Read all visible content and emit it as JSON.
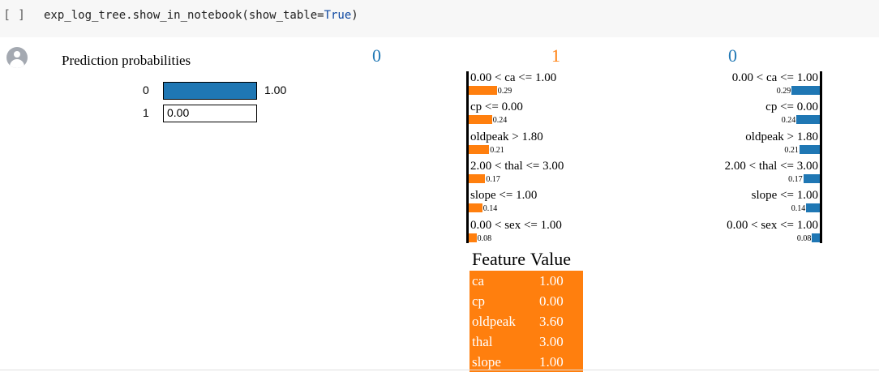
{
  "cell": {
    "run_indicator": "[ ]",
    "code_prefix": "exp_log_tree.show_in_notebook(show_table=",
    "code_keyword": "True",
    "code_suffix": ")"
  },
  "prediction": {
    "title": "Prediction probabilities",
    "rows": [
      {
        "label": "0",
        "value": "1.00",
        "fraction": 1.0
      },
      {
        "label": "1",
        "value": "0.00",
        "fraction": 0.0
      }
    ]
  },
  "class_headers": {
    "left": "0",
    "middle": "1",
    "right": "0"
  },
  "explanation": {
    "left_items": [
      {
        "label": "0.00 < ca <= 1.00",
        "value": "0.29",
        "weight": 0.29
      },
      {
        "label": "cp <= 0.00",
        "value": "0.24",
        "weight": 0.24
      },
      {
        "label": "oldpeak > 1.80",
        "value": "0.21",
        "weight": 0.21
      },
      {
        "label": "2.00 < thal <= 3.00",
        "value": "0.17",
        "weight": 0.17
      },
      {
        "label": "slope <= 1.00",
        "value": "0.14",
        "weight": 0.14
      },
      {
        "label": "0.00 < sex <= 1.00",
        "value": "0.08",
        "weight": 0.08
      }
    ],
    "right_items": [
      {
        "label": "0.00 < ca <= 1.00",
        "value": "0.29",
        "weight": 0.29
      },
      {
        "label": "cp <= 0.00",
        "value": "0.24",
        "weight": 0.24
      },
      {
        "label": "oldpeak > 1.80",
        "value": "0.21",
        "weight": 0.21
      },
      {
        "label": "2.00 < thal <= 3.00",
        "value": "0.17",
        "weight": 0.17
      },
      {
        "label": "slope <= 1.00",
        "value": "0.14",
        "weight": 0.14
      },
      {
        "label": "0.00 < sex <= 1.00",
        "value": "0.08",
        "weight": 0.08
      }
    ]
  },
  "feature_table": {
    "headers": [
      "Feature",
      "Value"
    ],
    "rows": [
      {
        "feature": "ca",
        "value": "1.00"
      },
      {
        "feature": "cp",
        "value": "0.00"
      },
      {
        "feature": "oldpeak",
        "value": "3.60"
      },
      {
        "feature": "thal",
        "value": "3.00"
      },
      {
        "feature": "slope",
        "value": "1.00"
      }
    ]
  },
  "colors": {
    "class0": "#1f77b4",
    "class1": "#ff7f0e",
    "header0": "#1f77b4",
    "header1": "#ff7f0e"
  }
}
